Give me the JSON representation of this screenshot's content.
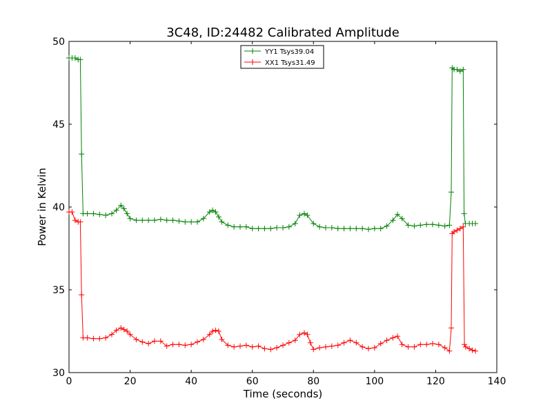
{
  "chart_data": {
    "type": "line",
    "title": "3C48, ID:24482 Calibrated Amplitude",
    "xlabel": "Time (seconds)",
    "ylabel": "Power in Kelvin",
    "xlim": [
      0,
      140
    ],
    "ylim": [
      30,
      50
    ],
    "xticks": [
      0,
      20,
      40,
      60,
      80,
      100,
      120,
      140
    ],
    "yticks": [
      30,
      35,
      40,
      45,
      50
    ],
    "grid": false,
    "legend_position": "top-center",
    "series": [
      {
        "name": "YY1 Tsys39.04",
        "color": "#008000",
        "marker": "+",
        "x": [
          0,
          1,
          2,
          3,
          3.7,
          4.1,
          4.6,
          6,
          8,
          10,
          12,
          14,
          15.5,
          17,
          18,
          19,
          20,
          22,
          24,
          26,
          28,
          30,
          32,
          34,
          36,
          38,
          40,
          42,
          44,
          46,
          47,
          48,
          49,
          50,
          52,
          54,
          56,
          58,
          60,
          62,
          64,
          66,
          68,
          70,
          72,
          74,
          75.5,
          77,
          78,
          80,
          82,
          84,
          86,
          88,
          90,
          92,
          94,
          96,
          98,
          100,
          102,
          104,
          106,
          107.5,
          109,
          111,
          113,
          115,
          117,
          119,
          121,
          123,
          124.5,
          125.1,
          125.4,
          126,
          127,
          128,
          129,
          129.3,
          129.7,
          131,
          132,
          133
        ],
        "values": [
          49.0,
          49.0,
          49.0,
          48.9,
          48.9,
          43.2,
          39.6,
          39.6,
          39.6,
          39.55,
          39.5,
          39.6,
          39.8,
          40.1,
          39.9,
          39.6,
          39.3,
          39.2,
          39.2,
          39.2,
          39.2,
          39.25,
          39.2,
          39.2,
          39.15,
          39.1,
          39.1,
          39.1,
          39.3,
          39.7,
          39.8,
          39.7,
          39.4,
          39.1,
          38.9,
          38.8,
          38.8,
          38.8,
          38.7,
          38.7,
          38.7,
          38.7,
          38.75,
          38.75,
          38.8,
          39.0,
          39.5,
          39.6,
          39.5,
          39.0,
          38.8,
          38.75,
          38.75,
          38.7,
          38.7,
          38.7,
          38.7,
          38.7,
          38.65,
          38.7,
          38.7,
          38.85,
          39.2,
          39.55,
          39.3,
          38.9,
          38.85,
          38.9,
          38.95,
          38.95,
          38.9,
          38.85,
          38.9,
          40.9,
          48.4,
          48.3,
          48.3,
          48.2,
          48.3,
          39.6,
          39.0,
          39.0,
          39.0,
          39.0
        ]
      },
      {
        "name": "XX1 Tsys31.49",
        "color": "#ff0000",
        "marker": "+",
        "x": [
          0,
          1,
          2,
          3,
          3.7,
          4.1,
          4.6,
          6,
          8,
          10,
          12,
          14,
          15.5,
          17,
          18,
          19,
          20,
          22,
          24,
          26,
          28,
          30,
          32,
          34,
          36,
          38,
          40,
          42,
          44,
          46,
          47,
          48,
          49,
          50,
          52,
          54,
          56,
          58,
          60,
          62,
          64,
          66,
          68,
          70,
          72,
          74,
          75.5,
          77,
          78,
          79,
          80,
          82,
          84,
          86,
          88,
          90,
          92,
          94,
          96,
          98,
          100,
          102,
          104,
          106,
          107.5,
          109,
          111,
          113,
          115,
          117,
          119,
          121,
          123,
          124.5,
          125.1,
          125.4,
          126,
          127,
          128,
          129,
          129.4,
          129.8,
          131,
          132,
          133
        ],
        "values": [
          39.7,
          39.7,
          39.2,
          39.1,
          39.1,
          34.7,
          32.1,
          32.1,
          32.05,
          32.05,
          32.1,
          32.3,
          32.55,
          32.7,
          32.6,
          32.5,
          32.3,
          32.0,
          31.85,
          31.75,
          31.9,
          31.9,
          31.6,
          31.7,
          31.7,
          31.65,
          31.7,
          31.85,
          32.0,
          32.3,
          32.5,
          32.55,
          32.5,
          32.0,
          31.65,
          31.55,
          31.6,
          31.65,
          31.55,
          31.6,
          31.45,
          31.4,
          31.5,
          31.65,
          31.8,
          31.95,
          32.3,
          32.4,
          32.3,
          31.8,
          31.4,
          31.5,
          31.55,
          31.6,
          31.65,
          31.8,
          31.95,
          31.8,
          31.55,
          31.45,
          31.5,
          31.75,
          31.95,
          32.1,
          32.2,
          31.7,
          31.55,
          31.55,
          31.7,
          31.7,
          31.75,
          31.7,
          31.5,
          31.3,
          32.7,
          38.4,
          38.5,
          38.6,
          38.7,
          38.8,
          31.7,
          31.55,
          31.45,
          31.35,
          31.3
        ]
      }
    ]
  }
}
